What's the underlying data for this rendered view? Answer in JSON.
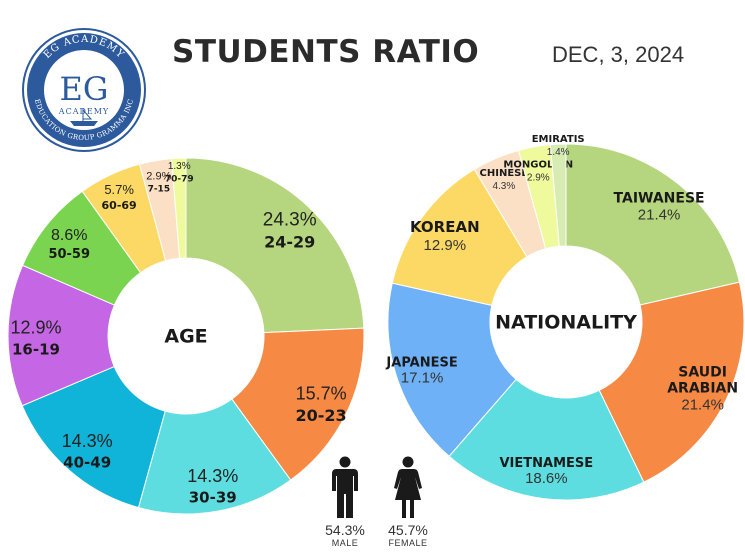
{
  "header": {
    "title": "STUDENTS RATIO",
    "date": "DEC, 3, 2024",
    "logo": {
      "top_text": "EG ACADEMY",
      "monogram": "EG",
      "sub_text": "ACADEMY",
      "ring_text": "EDUCATION GROUP GRAMMA INC"
    }
  },
  "chart_data": [
    {
      "type": "pie",
      "subtype": "donut",
      "title": "AGE",
      "slices": [
        {
          "label": "24-29",
          "value": 24.3,
          "display": "24.3%",
          "color": "#b5d67e"
        },
        {
          "label": "20-23",
          "value": 15.7,
          "display": "15.7%",
          "color": "#f68a45"
        },
        {
          "label": "30-39",
          "value": 14.3,
          "display": "14.3%",
          "color": "#5ddde0"
        },
        {
          "label": "40-49",
          "value": 14.3,
          "display": "14.3%",
          "color": "#10b4d8"
        },
        {
          "label": "16-19",
          "value": 12.9,
          "display": "12.9%",
          "color": "#c566e4"
        },
        {
          "label": "50-59",
          "value": 8.6,
          "display": "8.6%",
          "color": "#7ad450"
        },
        {
          "label": "60-69",
          "value": 5.7,
          "display": "5.7%",
          "color": "#fcd965"
        },
        {
          "label": "7-15",
          "value": 2.9,
          "display": "2.9%",
          "color": "#fbe0c5"
        },
        {
          "label": "70-79",
          "value": 1.3,
          "display": "1.3%",
          "color": "#eefa9c"
        }
      ]
    },
    {
      "type": "pie",
      "subtype": "donut",
      "title": "NATIONALITY",
      "slices": [
        {
          "label": "TAIWANESE",
          "value": 21.4,
          "display": "21.4%",
          "color": "#b5d67e"
        },
        {
          "label": "SAUDI ARABIAN",
          "value": 21.4,
          "display": "21.4%",
          "color": "#f68a45"
        },
        {
          "label": "VIETNAMESE",
          "value": 18.6,
          "display": "18.6%",
          "color": "#5ddde0"
        },
        {
          "label": "JAPANESE",
          "value": 17.1,
          "display": "17.1%",
          "color": "#6fb1f7"
        },
        {
          "label": "KOREAN",
          "value": 12.9,
          "display": "12.9%",
          "color": "#fcd965"
        },
        {
          "label": "CHINESE",
          "value": 4.3,
          "display": "4.3%",
          "color": "#fbe0c5"
        },
        {
          "label": "MONGOLIAN",
          "value": 2.9,
          "display": "2.9%",
          "color": "#eefa9c"
        },
        {
          "label": "EMIRATIS",
          "value": 1.4,
          "display": "1.4%",
          "color": "#d6ecb2"
        }
      ]
    }
  ],
  "gender": {
    "male": {
      "value": 54.3,
      "display": "54.3%",
      "label": "MALE",
      "icon": "male-person-icon"
    },
    "female": {
      "value": 45.7,
      "display": "45.7%",
      "label": "FEMALE",
      "icon": "female-person-icon"
    }
  }
}
